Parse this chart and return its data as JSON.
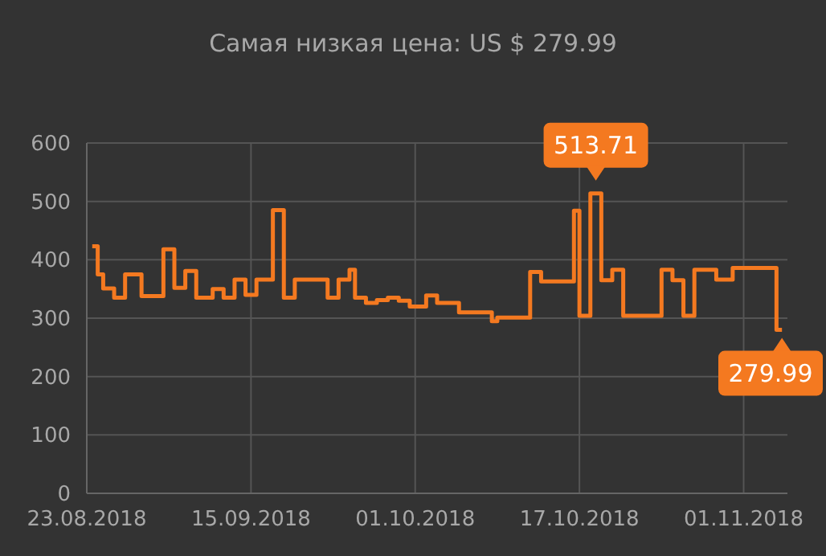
{
  "chart_data": {
    "type": "step",
    "title": "Самая низкая цена: US $ 279.99",
    "categories": [
      "23.08.2018",
      null,
      null,
      null,
      null,
      null,
      null,
      null,
      null,
      null,
      null,
      null,
      null,
      null,
      null,
      null,
      null,
      null,
      null,
      null,
      null,
      null,
      null,
      null,
      null,
      null,
      null,
      null,
      null,
      null,
      "15.09.2018",
      null,
      null,
      null,
      null,
      null,
      null,
      null,
      null,
      null,
      null,
      null,
      null,
      null,
      null,
      null,
      null,
      null,
      null,
      null,
      null,
      null,
      null,
      null,
      null,
      null,
      null,
      null,
      null,
      null,
      "01.10.2018",
      null,
      null,
      null,
      null,
      null,
      null,
      null,
      null,
      null,
      null,
      null,
      null,
      null,
      null,
      null,
      null,
      null,
      null,
      null,
      null,
      null,
      null,
      null,
      null,
      null,
      null,
      null,
      null,
      null,
      "17.10.2018",
      null,
      null,
      null,
      null,
      null,
      null,
      null,
      null,
      null,
      null,
      null,
      null,
      null,
      null,
      null,
      null,
      null,
      null,
      null,
      null,
      null,
      null,
      null,
      null,
      null,
      null,
      null,
      null,
      null,
      "01.11.2018",
      null,
      null,
      null,
      null,
      null,
      null,
      null
    ],
    "series": [
      {
        "color": "#f47920",
        "values": [
          null,
          423,
          375,
          351,
          351,
          335,
          335,
          375,
          375,
          375,
          338,
          338,
          338,
          338,
          418,
          418,
          352,
          352,
          381,
          381,
          335,
          335,
          335,
          350,
          350,
          335,
          335,
          366,
          366,
          340,
          340,
          366,
          366,
          366,
          485,
          485,
          335,
          335,
          366,
          366,
          366,
          366,
          366,
          366,
          335,
          335,
          366,
          366,
          383,
          335,
          335,
          326,
          326,
          331,
          331,
          335,
          335,
          330,
          330,
          320,
          320,
          320,
          339,
          339,
          326,
          326,
          326,
          326,
          310,
          310,
          310,
          310,
          310,
          310,
          295,
          301,
          301,
          301,
          301,
          301,
          301,
          379,
          379,
          363,
          363,
          363,
          363,
          363,
          363,
          484,
          304,
          304,
          513.71,
          513.71,
          365,
          365,
          383,
          383,
          304,
          304,
          304,
          304,
          304,
          304,
          304,
          383,
          383,
          365,
          365,
          304,
          304,
          383,
          383,
          383,
          383,
          366,
          366,
          366,
          386,
          386,
          386,
          386,
          386,
          386,
          386,
          386,
          279.99,
          279.99
        ]
      }
    ],
    "ylim": [
      0,
      600
    ],
    "yticks": [
      0,
      100,
      200,
      300,
      400,
      500,
      600
    ],
    "grid": true,
    "line_style": "solid",
    "marker": "none",
    "annotations": [
      {
        "text": "513.71",
        "y": 513.71
      },
      {
        "text": "279.99",
        "y": 279.99
      }
    ]
  }
}
